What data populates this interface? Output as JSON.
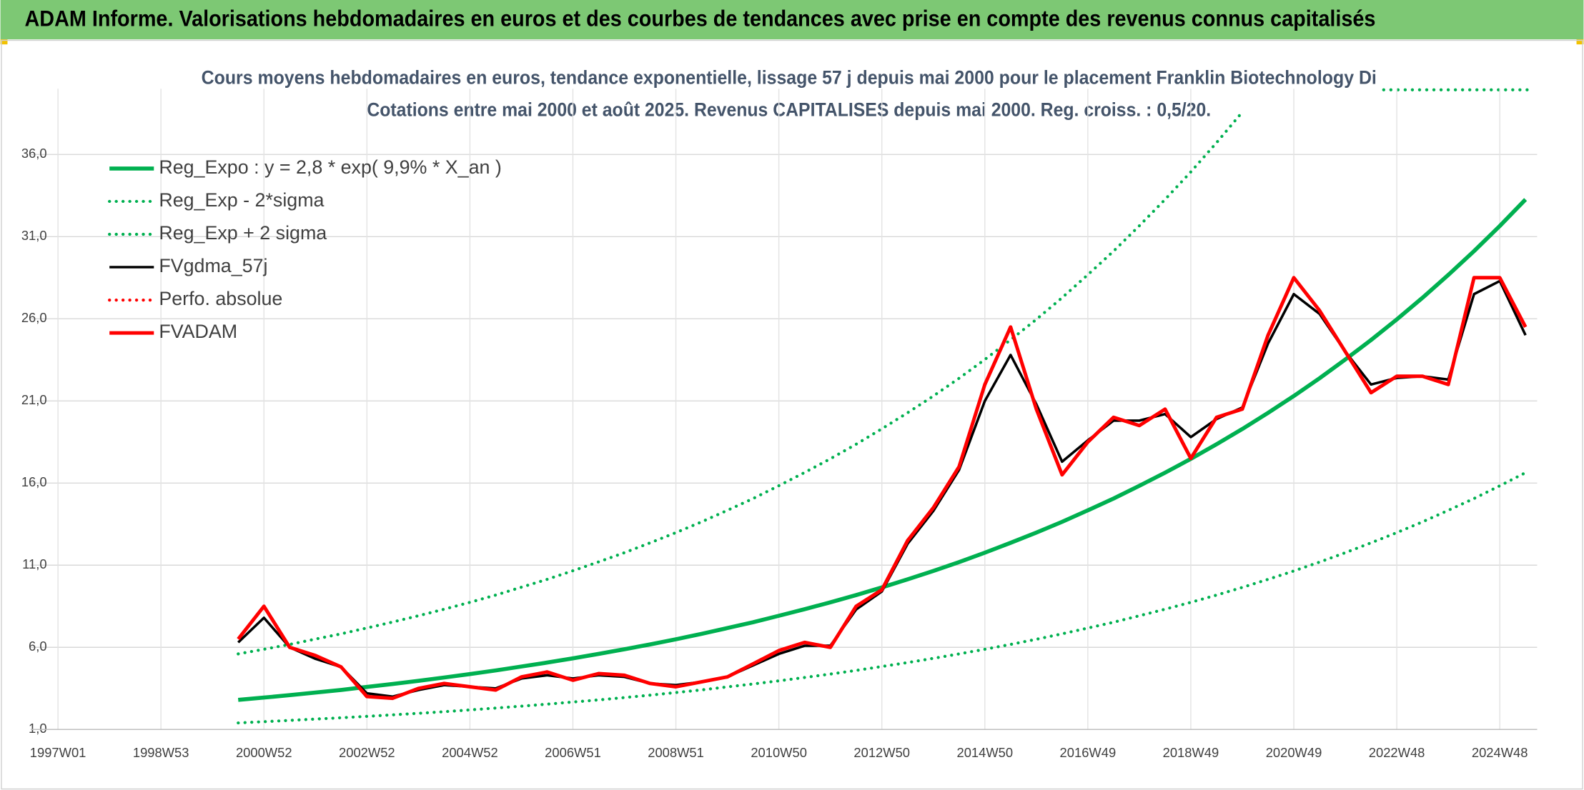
{
  "chart_data": {
    "type": "line",
    "header": "ADAM Informe. Valorisations hebdomadaires en euros et des courbes de tendances avec prise en compte des revenus connus capitalisés",
    "title": "Cours moyens hebdomadaires en euros, tendance exponentielle, lissage 57 j depuis mai 2000 pour le placement Franklin Biotechnology Di",
    "subtitle": "Cotations entre mai 2000 et août 2025. Revenus CAPITALISES depuis mai 2000. Reg. croiss. : 0,5/20.",
    "categories": [
      "1997W01",
      null,
      null,
      null,
      "1998W53",
      null,
      null,
      null,
      "2000W52",
      null,
      null,
      null,
      "2002W52",
      null,
      null,
      null,
      "2004W52",
      null,
      null,
      null,
      "2006W51",
      null,
      null,
      null,
      "2008W51",
      null,
      null,
      null,
      "2010W50",
      null,
      null,
      null,
      "2012W50",
      null,
      null,
      null,
      "2014W50",
      null,
      null,
      null,
      "2016W49",
      null,
      null,
      null,
      "2018W49",
      null,
      null,
      null,
      "2020W49",
      null,
      null,
      null,
      "2022W48",
      null,
      null,
      null,
      "2024W48",
      null
    ],
    "ylim": [
      1,
      40
    ],
    "yticks": [
      {
        "value": 1,
        "label": "1,0"
      },
      {
        "value": 6,
        "label": "6,0"
      },
      {
        "value": 11,
        "label": "11,0"
      },
      {
        "value": 16,
        "label": "16,0"
      },
      {
        "value": 21,
        "label": "21,0"
      },
      {
        "value": 26,
        "label": "26,0"
      },
      {
        "value": 31,
        "label": "31,0"
      },
      {
        "value": 36,
        "label": "36,0"
      }
    ],
    "grid": true,
    "legend": "top-left",
    "series": [
      {
        "name": "Reg_Expo : y = 2,8 * exp( 9,9% *  X_an )",
        "color": "#00b050",
        "line_style": "solid",
        "linewidth": 4,
        "values": [
          null,
          null,
          null,
          null,
          null,
          null,
          null,
          2.8,
          2.94,
          3.09,
          3.25,
          3.41,
          3.59,
          3.77,
          3.96,
          4.16,
          4.37,
          4.59,
          4.83,
          5.07,
          5.33,
          5.6,
          5.88,
          6.18,
          6.49,
          6.82,
          7.17,
          7.53,
          7.92,
          8.32,
          8.74,
          9.18,
          9.65,
          10.14,
          10.65,
          11.19,
          11.76,
          12.36,
          12.98,
          13.64,
          14.34,
          15.06,
          15.83,
          16.63,
          17.47,
          18.36,
          19.29,
          20.27,
          21.3,
          22.38,
          23.52,
          24.71,
          25.96,
          27.28,
          28.67,
          30.12,
          31.65,
          33.26
        ]
      },
      {
        "name": "Reg_Exp - 2*sigma",
        "color": "#00b050",
        "line_style": "dotted",
        "linewidth": 3,
        "values": [
          null,
          null,
          null,
          null,
          null,
          null,
          null,
          1.4,
          1.47,
          1.55,
          1.63,
          1.71,
          1.8,
          1.89,
          1.98,
          2.08,
          2.19,
          2.3,
          2.42,
          2.54,
          2.67,
          2.8,
          2.94,
          3.09,
          3.25,
          3.41,
          3.59,
          3.77,
          3.96,
          4.16,
          4.37,
          4.59,
          4.83,
          5.07,
          5.33,
          5.6,
          5.88,
          6.18,
          6.49,
          6.82,
          7.17,
          7.53,
          7.92,
          8.32,
          8.74,
          9.18,
          9.65,
          10.14,
          10.65,
          11.19,
          11.76,
          12.36,
          12.98,
          13.64,
          14.34,
          15.06,
          15.83,
          16.63
        ]
      },
      {
        "name": "Reg_Exp + 2 sigma",
        "color": "#00b050",
        "line_style": "dotted",
        "linewidth": 3,
        "values": [
          null,
          null,
          null,
          null,
          null,
          null,
          null,
          5.6,
          5.88,
          6.18,
          6.5,
          6.82,
          7.18,
          7.54,
          7.92,
          8.32,
          8.74,
          9.18,
          9.66,
          10.14,
          10.66,
          11.2,
          11.76,
          12.36,
          12.98,
          13.64,
          14.34,
          15.06,
          15.84,
          16.64,
          17.48,
          18.36,
          19.3,
          20.28,
          21.3,
          22.38,
          23.52,
          24.72,
          25.96,
          27.28,
          28.68,
          30.12,
          31.66,
          33.26,
          34.94,
          36.72,
          38.58,
          null,
          null,
          null,
          null,
          null,
          null,
          null,
          null,
          null,
          null,
          null
        ]
      },
      {
        "name": "FVgdma_57j",
        "color": "#000000",
        "line_style": "solid",
        "linewidth": 2.5,
        "values": [
          null,
          null,
          null,
          null,
          null,
          null,
          null,
          6.3,
          7.8,
          6.0,
          5.3,
          4.8,
          3.2,
          3.0,
          3.4,
          3.7,
          3.6,
          3.5,
          4.1,
          4.3,
          4.1,
          4.3,
          4.2,
          3.8,
          3.7,
          3.9,
          4.2,
          4.9,
          5.6,
          6.1,
          6.1,
          8.3,
          9.4,
          12.3,
          14.3,
          16.8,
          21.0,
          23.8,
          20.8,
          17.3,
          18.6,
          19.8,
          19.8,
          20.2,
          18.8,
          19.9,
          20.6,
          24.5,
          27.5,
          26.3,
          24.0,
          22.0,
          22.4,
          22.5,
          22.3,
          27.5,
          28.3,
          25.0
        ]
      },
      {
        "name": "Perfo. absolue",
        "color": "#ff0000",
        "line_style": "dotted",
        "linewidth": 3,
        "values": [
          null,
          null,
          null,
          null,
          null,
          null,
          null,
          null,
          null,
          null,
          null,
          null,
          null,
          null,
          null,
          null,
          null,
          null,
          null,
          null,
          null,
          null,
          null,
          null,
          null,
          null,
          null,
          null,
          null,
          null,
          null,
          null,
          null,
          null,
          null,
          null,
          null,
          null,
          null,
          null,
          null,
          null,
          null,
          null,
          null,
          null,
          null,
          null,
          null,
          null,
          null,
          null,
          null,
          null,
          null,
          null,
          null,
          null
        ]
      },
      {
        "name": "FVADAM",
        "color": "#ff0000",
        "line_style": "solid",
        "linewidth": 3.5,
        "values": [
          null,
          null,
          null,
          null,
          null,
          null,
          null,
          6.5,
          8.5,
          6.0,
          5.5,
          4.8,
          3.0,
          2.9,
          3.5,
          3.8,
          3.6,
          3.4,
          4.2,
          4.5,
          4.0,
          4.4,
          4.3,
          3.8,
          3.6,
          3.9,
          4.2,
          5.0,
          5.8,
          6.3,
          6.0,
          8.5,
          9.5,
          12.5,
          14.5,
          17.0,
          22.0,
          25.5,
          20.5,
          16.5,
          18.5,
          20.0,
          19.5,
          20.5,
          17.5,
          20.0,
          20.5,
          25.0,
          28.5,
          26.5,
          24.0,
          21.5,
          22.5,
          22.5,
          22.0,
          28.5,
          28.5,
          25.5
        ]
      }
    ]
  }
}
